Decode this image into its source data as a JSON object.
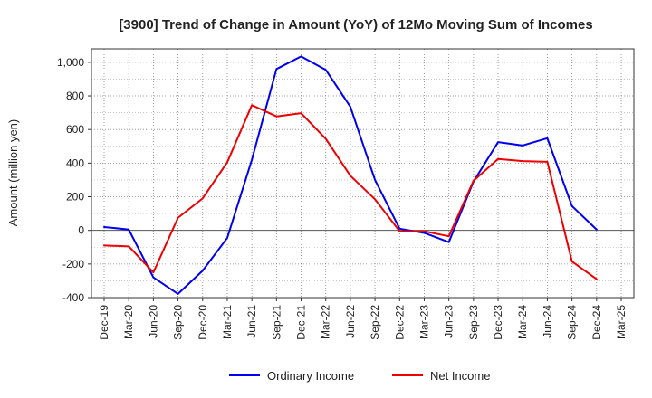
{
  "chart_data": {
    "type": "line",
    "title": "[3900]  Trend of Change in Amount (YoY) of 12Mo Moving Sum of Incomes",
    "xlabel": "",
    "ylabel": "Amount (million yen)",
    "ylim": [
      -400,
      1080
    ],
    "yticks": [
      -400,
      -200,
      0,
      200,
      400,
      600,
      800,
      1000
    ],
    "ytick_labels": [
      "-400",
      "-200",
      "0",
      "200",
      "400",
      "600",
      "800",
      "1,000"
    ],
    "grid": true,
    "legend_position": "bottom-center",
    "categories": [
      "Dec-19",
      "Mar-20",
      "Jun-20",
      "Sep-20",
      "Dec-20",
      "Mar-21",
      "Jun-21",
      "Sep-21",
      "Dec-21",
      "Mar-22",
      "Jun-22",
      "Sep-22",
      "Dec-22",
      "Mar-23",
      "Jun-23",
      "Sep-23",
      "Dec-23",
      "Mar-24",
      "Jun-24",
      "Sep-24",
      "Dec-24",
      "Mar-25"
    ],
    "series": [
      {
        "name": "Ordinary Income",
        "color": "#0000ee",
        "values": [
          20,
          5,
          -280,
          -378,
          -240,
          -45,
          420,
          960,
          1035,
          955,
          735,
          300,
          10,
          -15,
          -70,
          290,
          525,
          505,
          548,
          145,
          5,
          null
        ]
      },
      {
        "name": "Net Income",
        "color": "#ee0000",
        "values": [
          -90,
          -95,
          -250,
          75,
          190,
          405,
          745,
          678,
          697,
          545,
          325,
          185,
          -5,
          -5,
          -35,
          295,
          425,
          412,
          408,
          -185,
          -290,
          null
        ]
      }
    ]
  }
}
